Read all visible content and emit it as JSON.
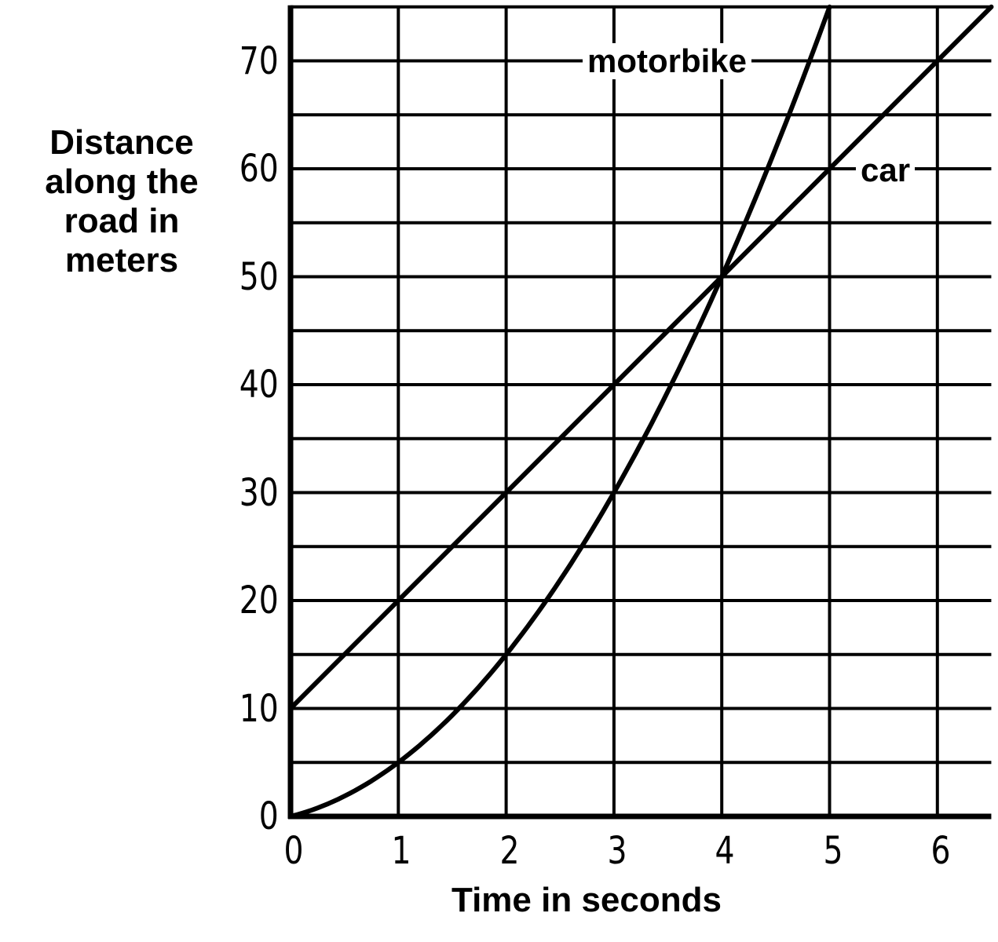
{
  "chart_data": {
    "type": "line",
    "title": "",
    "xlabel": "Time in seconds",
    "ylabel": "Distance along the road in meters",
    "ylabel_lines": [
      "Distance",
      "along the",
      "road in",
      "meters"
    ],
    "xlim": [
      0,
      6.5
    ],
    "ylim": [
      0,
      75
    ],
    "x_ticks": [
      "0",
      "1",
      "2",
      "3",
      "4",
      "5",
      "6"
    ],
    "y_ticks": [
      "0",
      "10",
      "20",
      "30",
      "40",
      "50",
      "60",
      "70"
    ],
    "grid": true,
    "grid_spacing": {
      "x": 1,
      "y": 5
    },
    "series": [
      {
        "name": "motorbike",
        "x": [
          0,
          0.5,
          1,
          1.5,
          2,
          2.5,
          3,
          3.5,
          4,
          4.5,
          5
        ],
        "values": [
          0,
          1.9,
          5,
          9.4,
          15,
          21.9,
          30,
          39.4,
          50,
          61.9,
          75
        ]
      },
      {
        "name": "car",
        "x": [
          0,
          1,
          2,
          3,
          4,
          5,
          6,
          6.5
        ],
        "values": [
          10,
          20,
          30,
          40,
          50,
          60,
          70,
          75
        ]
      }
    ],
    "annotations": [
      {
        "text": "motorbike",
        "x": 3.7,
        "y": 70
      },
      {
        "text": "car",
        "x": 5.6,
        "y": 60
      }
    ],
    "legend": "inline labels"
  }
}
